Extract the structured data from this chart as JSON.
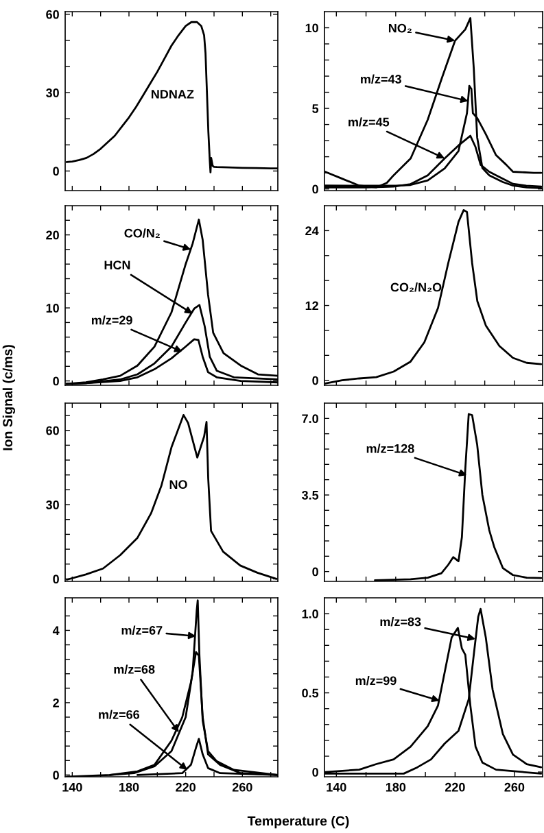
{
  "chart_data": [
    {
      "type": "line",
      "xlim": [
        135,
        285
      ],
      "ylim": [
        -7.5,
        61
      ],
      "tick_labels": "y",
      "xticks": [
        {
          "value": 140,
          "label": null
        },
        {
          "value": 160,
          "label": null
        },
        {
          "value": 180,
          "label": null
        },
        {
          "value": 200,
          "label": null
        },
        {
          "value": 220,
          "label": null
        },
        {
          "value": 240,
          "label": null
        },
        {
          "value": 260,
          "label": null
        },
        {
          "value": 280,
          "label": null
        }
      ],
      "yticks": [
        0,
        {
          "value": 10,
          "label": null
        },
        {
          "value": 20,
          "label": null
        },
        30,
        {
          "value": 40,
          "label": null
        },
        {
          "value": 50,
          "label": null
        },
        60
      ],
      "series": [
        {
          "color": "#000000",
          "x": [
            136,
            140,
            145,
            150,
            155,
            160,
            165,
            170,
            175,
            180,
            185,
            190,
            195,
            200,
            205,
            210,
            215,
            220,
            224,
            228,
            231,
            233,
            234,
            235,
            236,
            237,
            237.5,
            238,
            239,
            240,
            242,
            250,
            260,
            270,
            280,
            285
          ],
          "values": [
            3.4,
            3.6,
            4.2,
            5,
            6.5,
            8.5,
            11,
            13.5,
            17,
            20.5,
            24.5,
            29,
            33.5,
            38,
            43,
            48,
            52,
            55.5,
            57,
            57,
            55.5,
            52,
            45,
            30,
            15,
            4,
            -0.5,
            5,
            2,
            1.6,
            1.5,
            1.4,
            1.2,
            1.1,
            1.0,
            1.0
          ]
        }
      ],
      "annotations": [
        {
          "text": "NDNAZ",
          "x": 190,
          "y": 29
        }
      ]
    },
    {
      "type": "line",
      "xlim": [
        132,
        279
      ],
      "ylim": [
        -0.1,
        11
      ],
      "tick_labels": "y",
      "xticks": [
        {
          "value": 140,
          "label": null
        },
        {
          "value": 160,
          "label": null
        },
        {
          "value": 180,
          "label": null
        },
        {
          "value": 200,
          "label": null
        },
        {
          "value": 220,
          "label": null
        },
        {
          "value": 240,
          "label": null
        },
        {
          "value": 260,
          "label": null
        }
      ],
      "yticks": [
        0,
        {
          "value": 1,
          "label": null
        },
        {
          "value": 2,
          "label": null
        },
        {
          "value": 3,
          "label": null
        },
        {
          "value": 4,
          "label": null
        },
        5,
        {
          "value": 6,
          "label": null
        },
        {
          "value": 7,
          "label": null
        },
        {
          "value": 8,
          "label": null
        },
        {
          "value": 9,
          "label": null
        },
        10
      ],
      "series": [
        {
          "color": "#000000",
          "x": [
            132.4,
            143.9,
            155.4,
            167,
            174,
            178.6,
            190.1,
            201.6,
            210.8,
            220,
            226.9,
            230.3,
            232.6,
            234.9,
            238.4,
            243,
            252.2,
            259.1,
            268.3,
            278
          ],
          "values": [
            1.07,
            0.64,
            0.21,
            0.1,
            0.38,
            0.85,
            1.9,
            4.3,
            6.8,
            9.2,
            9.9,
            10.6,
            7.5,
            3.2,
            1.3,
            0.85,
            0.43,
            0.21,
            0.1,
            0.05
          ]
        },
        {
          "color": "#000000",
          "x": [
            132.4,
            160,
            180,
            190,
            201.6,
            213,
            222.3,
            228,
            229.6,
            231,
            232,
            234.9,
            240.7,
            247.6,
            254.5,
            259,
            273,
            278
          ],
          "values": [
            0.21,
            0.2,
            0.2,
            0.25,
            0.53,
            1.28,
            2.35,
            4.7,
            6.4,
            6.2,
            4.7,
            4.4,
            3.4,
            2.1,
            1.5,
            1.07,
            1.0,
            1.0
          ]
        },
        {
          "color": "#000000",
          "x": [
            132.4,
            160,
            178.6,
            190,
            201.6,
            213,
            222.3,
            230.3,
            233.8,
            237.2,
            243,
            252,
            259,
            268,
            278
          ],
          "values": [
            0.1,
            0.1,
            0.15,
            0.3,
            0.85,
            1.9,
            2.7,
            3.3,
            2.6,
            1.5,
            1.07,
            0.64,
            0.32,
            0.2,
            0.15
          ]
        }
      ],
      "annotations": [
        {
          "text": "NO₂",
          "x": 220,
          "y": 9.2
        },
        {
          "text": "m/z=43",
          "x": 229,
          "y": 5.45
        },
        {
          "text": "m/z=45",
          "x": 213,
          "y": 1.9
        }
      ]
    },
    {
      "type": "line",
      "xlim": [
        135,
        285
      ],
      "ylim": [
        -0.6,
        24
      ],
      "tick_labels": "y",
      "xticks": [
        {
          "value": 140,
          "label": null
        },
        {
          "value": 160,
          "label": null
        },
        {
          "value": 180,
          "label": null
        },
        {
          "value": 200,
          "label": null
        },
        {
          "value": 220,
          "label": null
        },
        {
          "value": 240,
          "label": null
        },
        {
          "value": 260,
          "label": null
        },
        {
          "value": 280,
          "label": null
        }
      ],
      "yticks": [
        0,
        {
          "value": 2,
          "label": null
        },
        {
          "value": 4,
          "label": null
        },
        {
          "value": 6,
          "label": null
        },
        {
          "value": 8,
          "label": null
        },
        10,
        {
          "value": 12,
          "label": null
        },
        {
          "value": 14,
          "label": null
        },
        {
          "value": 16,
          "label": null
        },
        {
          "value": 18,
          "label": null
        },
        20,
        {
          "value": 22,
          "label": null
        }
      ],
      "series": [
        {
          "color": "#000000",
          "x": [
            136,
            149.6,
            161.7,
            173.8,
            186,
            198,
            210,
            220,
            224.9,
            229.3,
            232,
            235.8,
            239.4,
            246.7,
            258.8,
            271,
            285
          ],
          "values": [
            -0.4,
            -0.2,
            0.2,
            0.7,
            2.1,
            4.7,
            9.4,
            16,
            18.8,
            22.1,
            19.3,
            11.8,
            6.6,
            3.8,
            2.1,
            0.9,
            0.7
          ]
        },
        {
          "color": "#000000",
          "x": [
            136,
            149.6,
            173.8,
            186,
            198,
            210,
            220,
            226,
            229.7,
            233.4,
            237,
            241.9,
            254,
            285
          ],
          "values": [
            -0.4,
            -0.3,
            0.2,
            0.9,
            2.4,
            4.7,
            8.0,
            9.9,
            10.4,
            7.5,
            3.3,
            1.4,
            0.5,
            0.2
          ]
        },
        {
          "color": "#000000",
          "x": [
            136,
            149.6,
            173.8,
            186,
            198,
            210,
            220,
            226,
            229,
            232,
            235.8,
            241.9,
            258.8,
            285
          ],
          "values": [
            -0.4,
            -0.3,
            0,
            0.5,
            1.6,
            3.1,
            4.7,
            5.7,
            5.6,
            3.3,
            1.2,
            0.5,
            0,
            -0.2
          ]
        }
      ],
      "annotations": [
        {
          "text": "CO/N₂",
          "x": 223.7,
          "y": 18.0
        },
        {
          "text": "HCN",
          "x": 224.9,
          "y": 9.2
        },
        {
          "text": "m/z=29",
          "x": 217.6,
          "y": 4.0
        }
      ]
    },
    {
      "type": "line",
      "xlim": [
        132,
        279
      ],
      "ylim": [
        -0.8,
        28
      ],
      "tick_labels": "y",
      "xticks": [
        {
          "value": 140,
          "label": null
        },
        {
          "value": 160,
          "label": null
        },
        {
          "value": 180,
          "label": null
        },
        {
          "value": 200,
          "label": null
        },
        {
          "value": 220,
          "label": null
        },
        {
          "value": 240,
          "label": null
        },
        {
          "value": 260,
          "label": null
        }
      ],
      "yticks": [
        0,
        {
          "value": 4,
          "label": null
        },
        {
          "value": 8,
          "label": null
        },
        12,
        {
          "value": 16,
          "label": null
        },
        {
          "value": 20,
          "label": null
        },
        24
      ],
      "series": [
        {
          "color": "#000000",
          "x": [
            132.4,
            143.9,
            155.4,
            166.9,
            178.6,
            190,
            199.3,
            208.5,
            215.4,
            222.3,
            225.8,
            228,
            231.5,
            235,
            240.7,
            249.9,
            259,
            268.3,
            278
          ],
          "values": [
            -0.5,
            0,
            0.3,
            0.5,
            1.4,
            3.0,
            6.1,
            11.6,
            18.8,
            25.4,
            27.3,
            27,
            18.8,
            12.7,
            8.8,
            5.5,
            3.6,
            2.8,
            2.6
          ]
        }
      ],
      "annotations": [
        "CO₂/N₂O"
      ]
    },
    {
      "type": "line",
      "xlim": [
        135,
        285
      ],
      "ylim": [
        -1,
        71
      ],
      "tick_labels": "y",
      "ylabel": "Ion Signal (c/ms)",
      "xticks": [
        {
          "value": 140,
          "label": null
        },
        {
          "value": 160,
          "label": null
        },
        {
          "value": 180,
          "label": null
        },
        {
          "value": 200,
          "label": null
        },
        {
          "value": 220,
          "label": null
        },
        {
          "value": 240,
          "label": null
        },
        {
          "value": 260,
          "label": null
        },
        {
          "value": 280,
          "label": null
        }
      ],
      "yticks": [
        0,
        {
          "value": 6,
          "label": null
        },
        {
          "value": 12,
          "label": null
        },
        {
          "value": 18,
          "label": null
        },
        {
          "value": 24,
          "label": null
        },
        30,
        {
          "value": 36,
          "label": null
        },
        {
          "value": 42,
          "label": null
        },
        {
          "value": 48,
          "label": null
        },
        {
          "value": 54,
          "label": null
        },
        60,
        {
          "value": 66,
          "label": null
        }
      ],
      "series": [
        {
          "color": "#000000",
          "x": [
            136.2,
            149.6,
            161.7,
            173.8,
            186,
            195.6,
            202.9,
            210,
            218.5,
            221.7,
            228.2,
            233,
            234.7,
            235.9,
            237.9,
            246.4,
            258.5,
            270.6,
            284
          ],
          "values": [
            -0.3,
            1.8,
            4.2,
            9.6,
            16.6,
            26.5,
            37.7,
            53.2,
            66.2,
            63,
            49,
            57.5,
            63.4,
            40.6,
            19.4,
            11,
            5.4,
            2.5,
            0
          ]
        }
      ],
      "annotations": [
        {
          "text": "NO",
          "x": 202.9,
          "y": 37.7
        }
      ]
    },
    {
      "type": "line",
      "xlim": [
        132,
        279
      ],
      "ylim": [
        -0.45,
        7.7
      ],
      "tick_labels": "y",
      "xticks": [
        {
          "value": 140,
          "label": null
        },
        {
          "value": 160,
          "label": null
        },
        {
          "value": 180,
          "label": null
        },
        {
          "value": 200,
          "label": null
        },
        {
          "value": 220,
          "label": null
        },
        {
          "value": 240,
          "label": null
        },
        {
          "value": 260,
          "label": null
        }
      ],
      "yticks": [
        {
          "value": 0,
          "label": "0"
        },
        {
          "value": 0.7,
          "label": null
        },
        {
          "value": 1.4,
          "label": null
        },
        {
          "value": 2.1,
          "label": null
        },
        {
          "value": 2.8,
          "label": null
        },
        {
          "value": 3.5,
          "label": "3.5"
        },
        {
          "value": 4.2,
          "label": null
        },
        {
          "value": 4.9,
          "label": null
        },
        {
          "value": 5.6,
          "label": null
        },
        {
          "value": 6.3,
          "label": null
        },
        {
          "value": 7.0,
          "label": "7.0"
        }
      ],
      "series": [
        {
          "color": "#000000",
          "x": [
            166,
            190,
            201.6,
            210.8,
            215.4,
            218.8,
            222.3,
            224.6,
            226.9,
            229.2,
            231.5,
            234.9,
            238.4,
            243,
            246.5,
            252.2,
            259,
            268.3,
            278
          ],
          "values": [
            -0.4,
            -0.35,
            -0.28,
            -0.08,
            0.31,
            0.66,
            0.47,
            1.57,
            4.7,
            7.2,
            7.15,
            5.8,
            3.5,
            1.9,
            1.1,
            0.16,
            -0.16,
            -0.28,
            -0.3
          ]
        }
      ],
      "annotations": [
        {
          "text": "m/z=128",
          "x": 228,
          "y": 4.4
        }
      ]
    },
    {
      "type": "line",
      "xlim": [
        135,
        285
      ],
      "ylim": [
        -0.05,
        4.9
      ],
      "xlabel": "Temperature (C)",
      "xticks": [
        140,
        {
          "value": 160,
          "label": null
        },
        180,
        {
          "value": 200,
          "label": null
        },
        220,
        {
          "value": 240,
          "label": null
        },
        260,
        {
          "value": 280,
          "label": null
        }
      ],
      "yticks": [
        0,
        {
          "value": 0.4,
          "label": null
        },
        {
          "value": 0.8,
          "label": null
        },
        {
          "value": 1.2,
          "label": null
        },
        {
          "value": 1.6,
          "label": null
        },
        2,
        {
          "value": 2.4,
          "label": null
        },
        {
          "value": 2.8,
          "label": null
        },
        {
          "value": 3.2,
          "label": null
        },
        {
          "value": 3.6,
          "label": null
        },
        4,
        {
          "value": 4.4,
          "label": null
        }
      ],
      "series": [
        {
          "color": "#000000",
          "x": [
            136.2,
            166.6,
            183.6,
            198,
            210,
            220,
            224.9,
            227.8,
            228.5,
            229.7,
            232,
            235.8,
            241.9,
            254,
            285
          ],
          "values": [
            -0.05,
            0,
            0.05,
            0.24,
            0.66,
            1.6,
            2.84,
            4.55,
            4.83,
            3.3,
            1.5,
            0.66,
            0.38,
            0.14,
            0
          ]
        },
        {
          "color": "#000000",
          "x": [
            166.6,
            186,
            198,
            210,
            217.6,
            223.7,
            227.3,
            229.3,
            232,
            235.8,
            244.3,
            258.8,
            285
          ],
          "values": [
            0,
            0.1,
            0.28,
            0.95,
            1.6,
            2.56,
            3.4,
            3.3,
            1.6,
            0.57,
            0.28,
            0.05,
            0
          ]
        },
        {
          "color": "#000000",
          "x": [
            186,
            217.6,
            223.7,
            227.3,
            229.3,
            232,
            235.8,
            244.3,
            285
          ],
          "values": [
            0,
            0.05,
            0.28,
            0.76,
            1.0,
            0.57,
            0.19,
            0.05,
            0
          ]
        }
      ],
      "annotations": [
        {
          "text": "m/z=67",
          "x": 227.3,
          "y": 3.84
        },
        {
          "text": "m/z=68",
          "x": 215.2,
          "y": 1.18
        },
        {
          "text": "m/z=66",
          "x": 221.2,
          "y": 0.14
        }
      ]
    },
    {
      "type": "line",
      "xlim": [
        132,
        279
      ],
      "ylim": [
        -0.03,
        1.1
      ],
      "xticks": [
        140,
        {
          "value": 160,
          "label": null
        },
        180,
        {
          "value": 200,
          "label": null
        },
        220,
        {
          "value": 240,
          "label": null
        },
        260
      ],
      "yticks": [
        {
          "value": 0,
          "label": "0"
        },
        {
          "value": 0.1,
          "label": null
        },
        {
          "value": 0.2,
          "label": null
        },
        {
          "value": 0.3,
          "label": null
        },
        {
          "value": 0.4,
          "label": null
        },
        {
          "value": 0.5,
          "label": "0.5"
        },
        {
          "value": 0.6,
          "label": null
        },
        {
          "value": 0.7,
          "label": null
        },
        {
          "value": 0.8,
          "label": null
        },
        {
          "value": 0.9,
          "label": null
        },
        {
          "value": 1.0,
          "label": "1.0"
        }
      ],
      "series": [
        {
          "color": "#000000",
          "x": [
            132.4,
            155.4,
            166.9,
            178.6,
            190,
            201.6,
            208.5,
            213,
            217.7,
            221.9,
            224.6,
            226.9,
            230.3,
            233.8,
            238.4,
            247.6,
            278
          ],
          "values": [
            0,
            0.015,
            0.05,
            0.08,
            0.16,
            0.29,
            0.42,
            0.63,
            0.85,
            0.91,
            0.78,
            0.74,
            0.42,
            0.16,
            0.06,
            0.015,
            -0.01
          ]
        },
        {
          "color": "#000000",
          "x": [
            132.4,
            185.4,
            194.6,
            203.8,
            213,
            222.3,
            229.2,
            232.6,
            235.6,
            237.2,
            240.7,
            245.3,
            252.2,
            259,
            268.3,
            278
          ],
          "values": [
            -0.01,
            -0.01,
            0.03,
            0.08,
            0.18,
            0.26,
            0.46,
            0.74,
            0.98,
            1.03,
            0.85,
            0.52,
            0.24,
            0.11,
            0.05,
            0.03
          ]
        }
      ],
      "annotations": [
        {
          "text": "m/z=83",
          "x": 233.8,
          "y": 0.84
        },
        {
          "text": "m/z=99",
          "x": 209.6,
          "y": 0.45
        }
      ]
    }
  ]
}
